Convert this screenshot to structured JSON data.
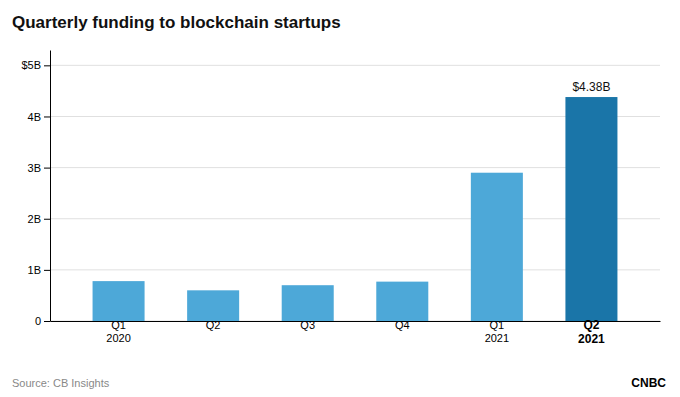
{
  "chart_data": {
    "type": "bar",
    "title": "Quarterly funding to blockchain startups",
    "categories": [
      "Q1\n2020",
      "Q2",
      "Q3",
      "Q4",
      "Q1\n2021",
      "Q2\n2021"
    ],
    "values": [
      0.78,
      0.6,
      0.7,
      0.77,
      2.9,
      4.38
    ],
    "colors": [
      "#4da8d8",
      "#4da8d8",
      "#4da8d8",
      "#4da8d8",
      "#4da8d8",
      "#1a75a8"
    ],
    "ylim": [
      0,
      5.3
    ],
    "yticks": [
      0,
      {
        "value": 1,
        "label": "1B"
      },
      {
        "value": 2,
        "label": "2B"
      },
      {
        "value": 3,
        "label": "3B"
      },
      {
        "value": 4,
        "label": "4B"
      },
      {
        "value": 5,
        "label": "$5B"
      }
    ],
    "grid": true,
    "annotations": [
      {
        "text": "$4.38B",
        "x": "Q2\n2021",
        "y": 4.38
      }
    ],
    "source": "Source: CB Insights",
    "credit": "CNBC"
  }
}
